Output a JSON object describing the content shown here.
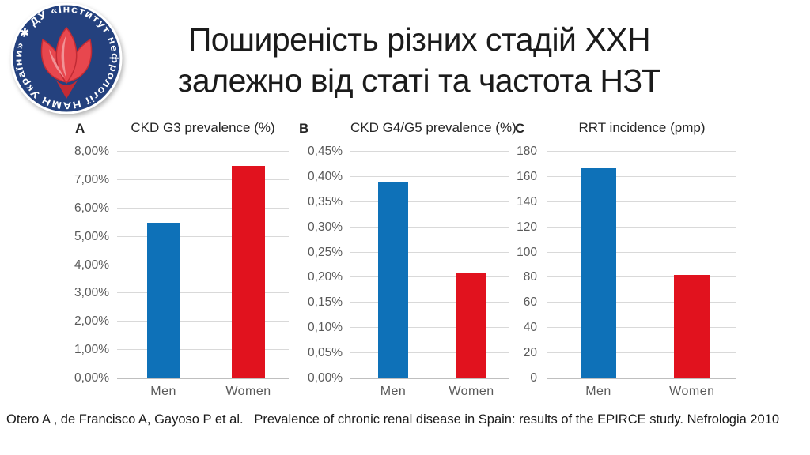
{
  "slide": {
    "title": {
      "line1": "Поширеність різних стадій ХХН",
      "line2": "залежно від статі та частота НЗТ"
    },
    "citation": "Otero A , de Francisco A, Gayoso P et al.   Prevalence of chronic renal disease in Spain: results of the EPIRCE study. Nefrologia 2010"
  },
  "logo": {
    "organization": "ДУ «Інститут нефрології НАМН України»",
    "ring_text": "✱ ДУ «Інститут нефрології НАМН України»",
    "colors": {
      "badge": "#24417E",
      "ring_text": "#FFFFFF",
      "tulip": "#E8474E",
      "tulip_dark": "#C12B34",
      "tulip_light": "#F19396"
    }
  },
  "colors": {
    "background": "#FFFFFF",
    "men_bar": "#0E71B8",
    "women_bar": "#E1121E",
    "gridline": "#D9D9D9",
    "axis_line": "#BFBFBF",
    "tick_label": "#595959",
    "text": "#1A1A1A"
  },
  "chart_data": [
    {
      "type": "bar",
      "panel_label": "A",
      "title": "CKD G3 prevalence (%)",
      "categories": [
        "Men",
        "Women"
      ],
      "values": [
        5.5,
        7.5
      ],
      "series_colors": [
        "#0E71B8",
        "#E1121E"
      ],
      "ylim": [
        0,
        8
      ],
      "ytick_labels": [
        "8,00%",
        "7,00%",
        "6,00%",
        "5,00%",
        "4,00%",
        "3,00%",
        "2,00%",
        "1,00%",
        "0,00%"
      ],
      "grid": true,
      "legend": "none"
    },
    {
      "type": "bar",
      "panel_label": "B",
      "title": "CKD G4/G5 prevalence (%)",
      "categories": [
        "Men",
        "Women"
      ],
      "values": [
        0.39,
        0.21
      ],
      "series_colors": [
        "#0E71B8",
        "#E1121E"
      ],
      "ylim": [
        0,
        0.45
      ],
      "ytick_labels": [
        "0,45%",
        "0,40%",
        "0,35%",
        "0,30%",
        "0,25%",
        "0,20%",
        "0,15%",
        "0,10%",
        "0,05%",
        "0,00%"
      ],
      "grid": true,
      "legend": "none"
    },
    {
      "type": "bar",
      "panel_label": "C",
      "title": "RRT incidence (pmp)",
      "categories": [
        "Men",
        "Women"
      ],
      "values": [
        167,
        82
      ],
      "series_colors": [
        "#0E71B8",
        "#E1121E"
      ],
      "ylim": [
        0,
        180
      ],
      "ytick_labels": [
        "180",
        "160",
        "140",
        "120",
        "100",
        "80",
        "60",
        "40",
        "20",
        "0"
      ],
      "grid": true,
      "legend": "none"
    }
  ]
}
